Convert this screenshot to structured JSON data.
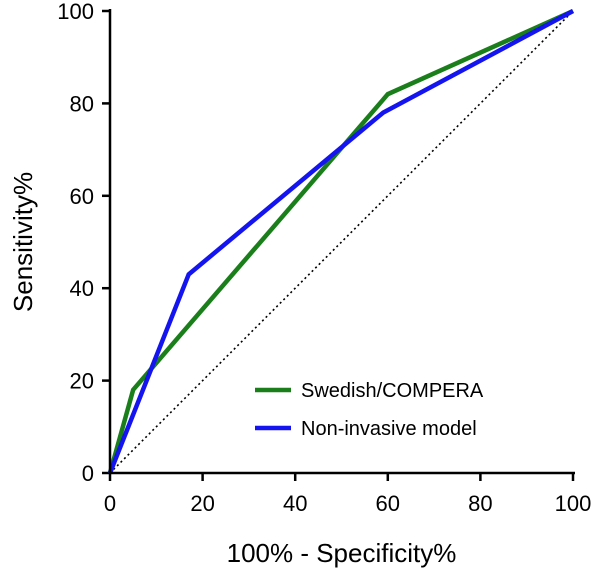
{
  "chart_data": {
    "type": "line",
    "title": "",
    "xlabel": "100% - Specificity%",
    "ylabel": "Sensitivity%",
    "xlim": [
      0,
      100
    ],
    "ylim": [
      0,
      100
    ],
    "xticks": [
      0,
      20,
      40,
      60,
      80,
      100
    ],
    "yticks": [
      0,
      20,
      40,
      60,
      80,
      100
    ],
    "grid": false,
    "legend_position": "bottom-right",
    "series": [
      {
        "name": "Swedish/COMPERA",
        "color": "#1a7f1a",
        "x": [
          0,
          5,
          60,
          100
        ],
        "y": [
          0,
          18,
          82,
          100
        ]
      },
      {
        "name": "Non-invasive model",
        "color": "#1414f0",
        "x": [
          0,
          17,
          59,
          100
        ],
        "y": [
          0,
          43,
          78,
          100
        ]
      }
    ],
    "reference_line": {
      "x": [
        0,
        100
      ],
      "y": [
        0,
        100
      ],
      "style": "dotted",
      "color": "#000000"
    }
  }
}
